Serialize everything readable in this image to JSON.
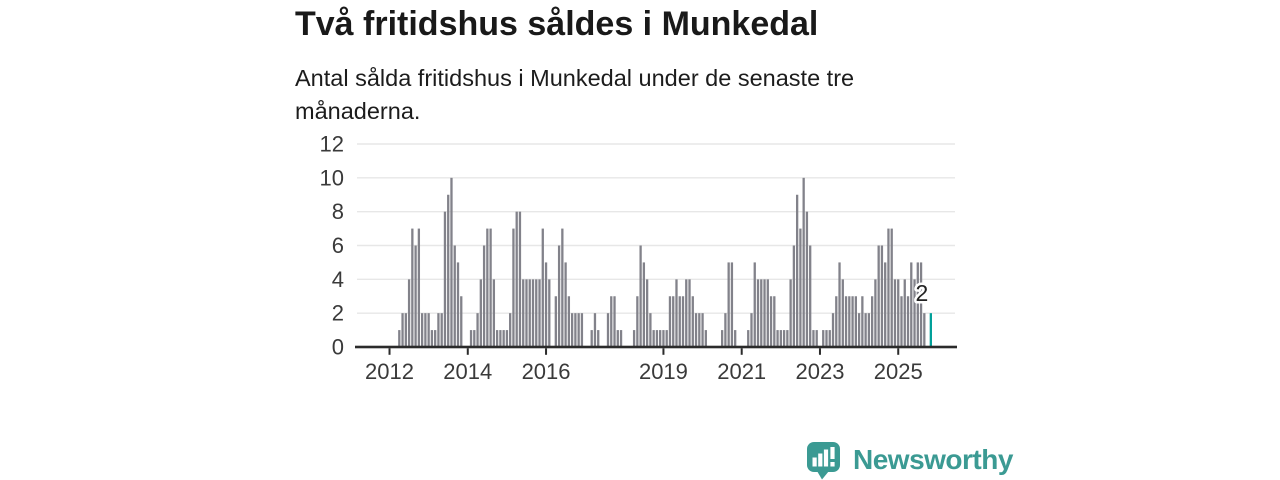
{
  "header": {
    "title": "Två fritidshus såldes i Munkedal",
    "subtitle": "Antal sålda fritidshus i Munkedal under de senaste tre månaderna.",
    "subtitle_lines": [
      "Antal sålda fritidshus i Munkedal under de senaste tre",
      "månaderna."
    ]
  },
  "chart_data": {
    "type": "bar",
    "title": "Två fritidshus såldes i Munkedal",
    "subtitle": "Antal sålda fritidshus i Munkedal under de senaste tre månaderna.",
    "xlabel": "",
    "ylabel": "",
    "frequency": "monthly",
    "start_month": "2012-04",
    "end_month": "2025-11",
    "values": [
      1,
      2,
      2,
      4,
      7,
      6,
      7,
      2,
      2,
      2,
      1,
      1,
      2,
      2,
      8,
      9,
      10,
      6,
      5,
      3,
      0,
      0,
      1,
      1,
      2,
      4,
      6,
      7,
      7,
      4,
      1,
      1,
      1,
      1,
      2,
      7,
      8,
      8,
      4,
      4,
      4,
      4,
      4,
      4,
      7,
      5,
      4,
      0,
      3,
      6,
      7,
      5,
      3,
      2,
      2,
      2,
      2,
      0,
      0,
      1,
      2,
      1,
      0,
      0,
      2,
      3,
      3,
      1,
      1,
      0,
      0,
      0,
      1,
      3,
      6,
      5,
      4,
      2,
      1,
      1,
      1,
      1,
      1,
      3,
      3,
      4,
      3,
      3,
      4,
      4,
      3,
      2,
      2,
      2,
      1,
      0,
      0,
      0,
      0,
      1,
      2,
      5,
      5,
      1,
      0,
      0,
      0,
      1,
      2,
      5,
      4,
      4,
      4,
      4,
      3,
      3,
      1,
      1,
      1,
      1,
      4,
      6,
      9,
      7,
      10,
      8,
      6,
      1,
      1,
      0,
      1,
      1,
      1,
      2,
      3,
      5,
      4,
      3,
      3,
      3,
      3,
      2,
      3,
      2,
      2,
      3,
      4,
      6,
      6,
      5,
      7,
      7,
      4,
      4,
      3,
      4,
      3,
      5,
      4,
      5,
      5,
      2,
      0,
      2
    ],
    "highlight": {
      "index": 163,
      "value": 2,
      "label": "2",
      "month": "2025-11"
    },
    "y_ticks": [
      0,
      2,
      4,
      6,
      8,
      10,
      12
    ],
    "x_tick_years": [
      2012,
      2014,
      2016,
      2019,
      2021,
      2023,
      2025
    ],
    "ylim": [
      0,
      12
    ],
    "grid": true,
    "legend": "none",
    "colors": {
      "bar": "#82828a",
      "highlight": "#00a099",
      "grid": "#e7e7e7",
      "axis": "#2b2b2b",
      "tick_text": "#3a3a3a"
    }
  },
  "footer": {
    "brand": "Newsworthy",
    "logo_icon": "bar-chart-speech-bubble-icon",
    "brand_color": "#3b9a93"
  }
}
